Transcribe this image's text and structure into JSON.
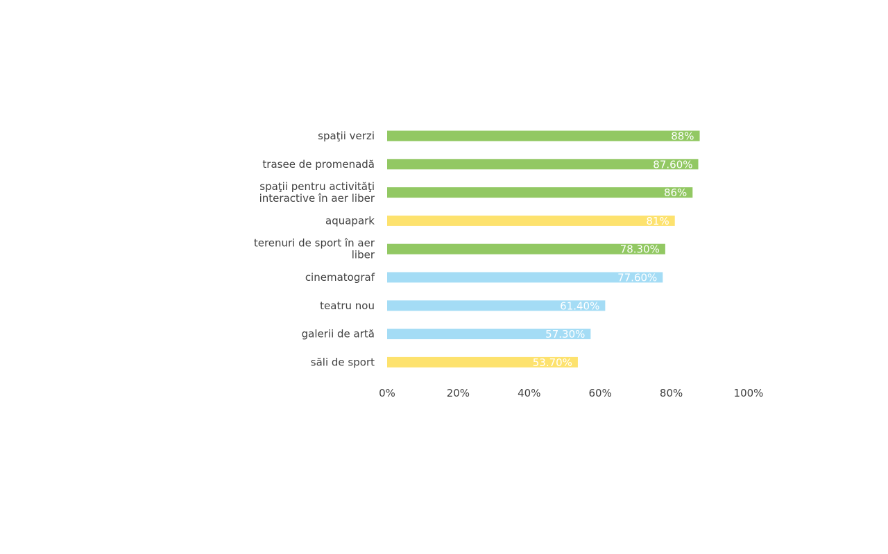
{
  "chart_data": {
    "type": "bar",
    "orientation": "horizontal",
    "categories": [
      "spaţii verzi",
      "trasee de promenadă",
      "spaţii pentru activităţi interactive în aer liber",
      "aquapark",
      "terenuri de sport în aer liber",
      "cinematograf",
      "teatru nou",
      "galerii de artă",
      "săli de sport"
    ],
    "category_lines": [
      [
        "spaţii verzi"
      ],
      [
        "trasee de promenadă"
      ],
      [
        "spaţii pentru activităţi",
        "interactive în aer liber"
      ],
      [
        "aquapark"
      ],
      [
        "terenuri de sport în aer",
        "liber"
      ],
      [
        "cinematograf"
      ],
      [
        "teatru nou"
      ],
      [
        "galerii de artă"
      ],
      [
        "săli de sport"
      ]
    ],
    "values": [
      88,
      87.6,
      86,
      81,
      78.3,
      77.6,
      61.4,
      57.3,
      53.7
    ],
    "data_labels": [
      "88%",
      "87.60%",
      "86%",
      "81%",
      "78.30%",
      "77.60%",
      "61.40%",
      "57.30%",
      "53.70%"
    ],
    "bar_colors": [
      "#92c863",
      "#92c863",
      "#92c863",
      "#fde26e",
      "#92c863",
      "#a4dcf5",
      "#a4dcf5",
      "#a4dcf5",
      "#fde26e"
    ],
    "xlim": [
      0,
      100
    ],
    "x_ticks": [
      "0%",
      "20%",
      "40%",
      "60%",
      "80%",
      "100%"
    ],
    "x_tick_values": [
      0,
      20,
      40,
      60,
      80,
      100
    ],
    "grid": false,
    "legend": "none",
    "title": "",
    "xlabel": "",
    "ylabel": ""
  }
}
